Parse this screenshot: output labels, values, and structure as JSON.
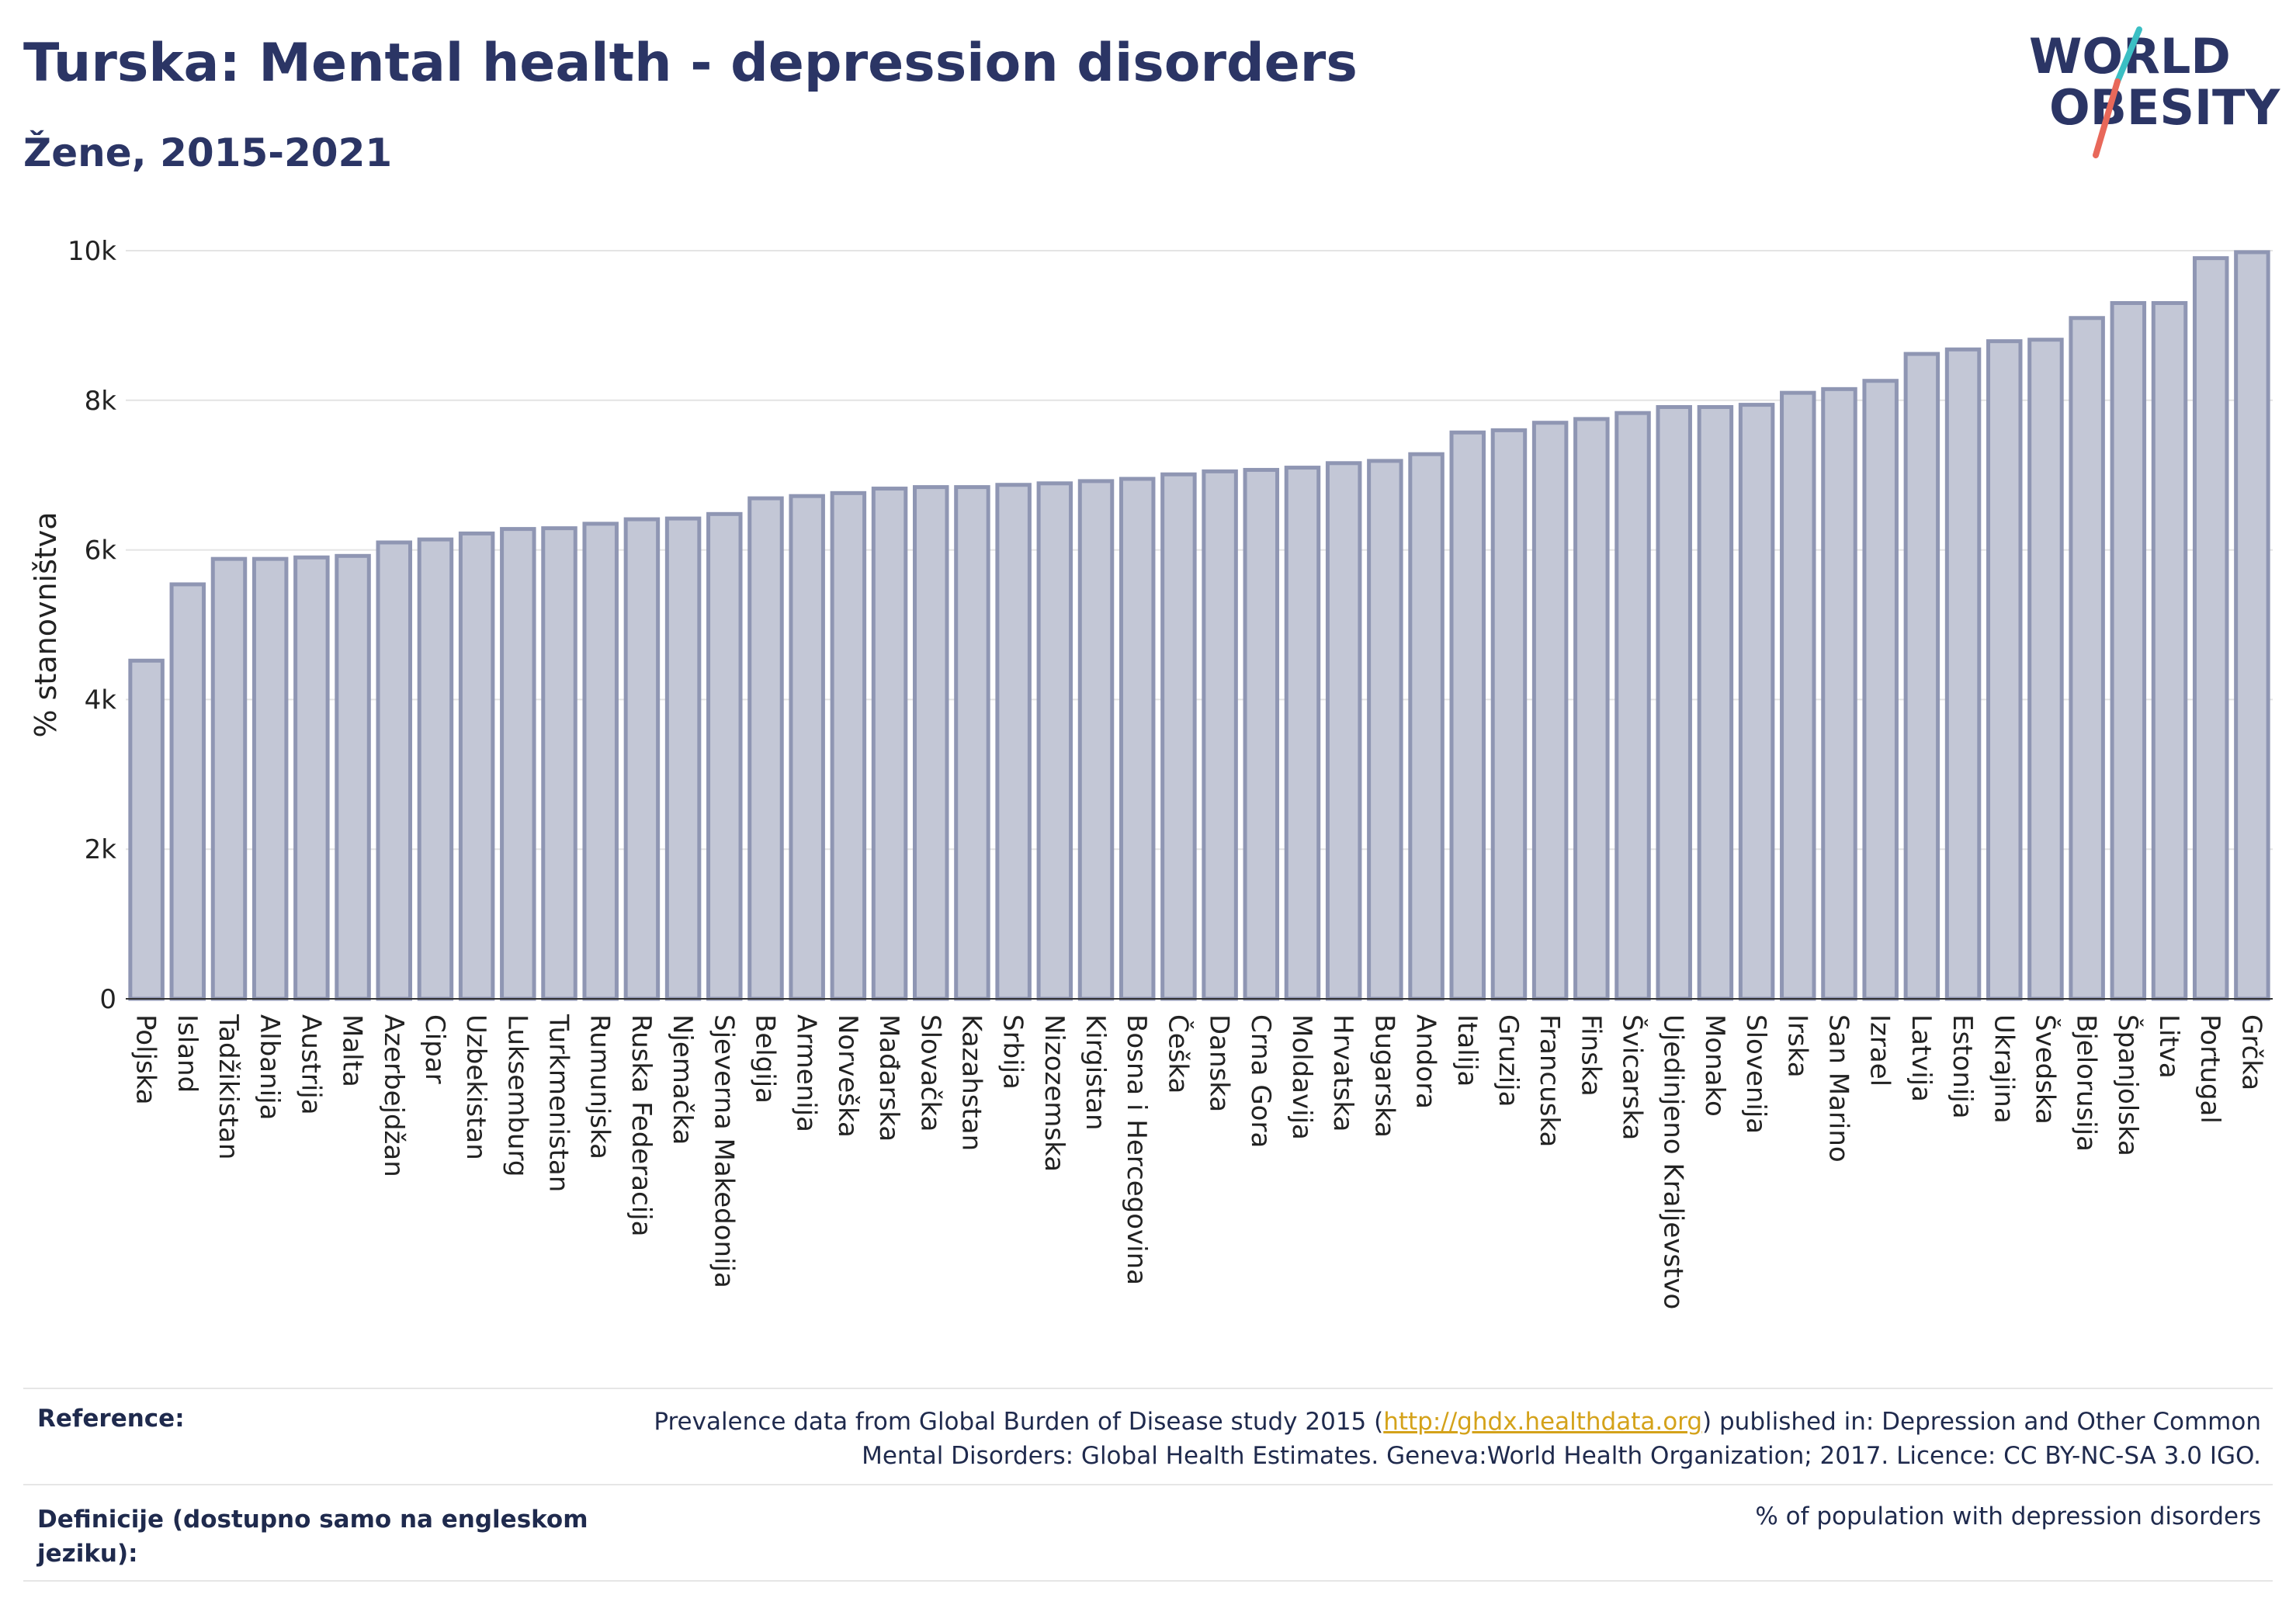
{
  "header": {
    "title": "Turska: Mental health - depression disorders",
    "subtitle": "Žene, 2015-2021"
  },
  "logo": {
    "line1": "WORLD",
    "line2": "OBESITY",
    "brand_color": "#2b3565",
    "accent_teal": "#3bbfc4",
    "accent_red": "#e8685a"
  },
  "chart_data": {
    "type": "bar",
    "title": "Turska: Mental health - depression disorders",
    "subtitle": "Žene, 2015-2021",
    "ylabel": "% stanovništva",
    "xlabel": "",
    "ylim": [
      0,
      10000
    ],
    "yticks": [
      0,
      2000,
      4000,
      6000,
      8000,
      10000
    ],
    "ytick_labels": [
      "0",
      "2k",
      "4k",
      "6k",
      "8k",
      "10k"
    ],
    "grid": true,
    "bar_color": "#c3c7d6",
    "bar_edge_color": "#8f96b3",
    "categories": [
      "Poljska",
      "Island",
      "Tadžikistan",
      "Albanija",
      "Austrija",
      "Malta",
      "Azerbejdžan",
      "Cipar",
      "Uzbekistan",
      "Luksemburg",
      "Turkmenistan",
      "Rumunjska",
      "Ruska Federacija",
      "Njemačka",
      "Sjeverna Makedonija",
      "Belgija",
      "Armenija",
      "Norveška",
      "Mađarska",
      "Slovačka",
      "Kazahstan",
      "Srbija",
      "Nizozemska",
      "Kirgistan",
      "Bosna i Hercegovina",
      "Češka",
      "Danska",
      "Crna Gora",
      "Moldavija",
      "Hrvatska",
      "Bugarska",
      "Andora",
      "Italija",
      "Gruzija",
      "Francuska",
      "Finska",
      "Švicarska",
      "Ujedinjeno Kraljevstvo",
      "Monako",
      "Slovenija",
      "Irska",
      "San Marino",
      "Izrael",
      "Latvija",
      "Estonija",
      "Ukrajina",
      "Švedska",
      "Bjelorusija",
      "Španjolska",
      "Litva",
      "Portugal",
      "Grčka"
    ],
    "values": [
      4520,
      5540,
      5880,
      5880,
      5900,
      5920,
      6100,
      6140,
      6220,
      6280,
      6290,
      6350,
      6410,
      6420,
      6480,
      6690,
      6720,
      6760,
      6820,
      6840,
      6840,
      6870,
      6890,
      6920,
      6950,
      7010,
      7050,
      7070,
      7100,
      7160,
      7190,
      7280,
      7570,
      7600,
      7700,
      7750,
      7830,
      7910,
      7910,
      7940,
      8100,
      8150,
      8260,
      8620,
      8680,
      8790,
      8810,
      9100,
      9300,
      9300,
      9900,
      9980
    ]
  },
  "footer": {
    "reference_label": "Reference:",
    "reference_text_before": "Prevalence data from Global Burden of Disease study 2015 (",
    "reference_link": "http://ghdx.healthdata.org",
    "reference_text_after": ") published in: Depression and Other Common Mental Disorders: Global Health Estimates. Geneva:World Health Organization; 2017. Licence: CC BY-NC-SA 3.0 IGO.",
    "definition_label": "Definicije (dostupno samo na engleskom jeziku):",
    "definition_text": "% of population with depression disorders"
  }
}
